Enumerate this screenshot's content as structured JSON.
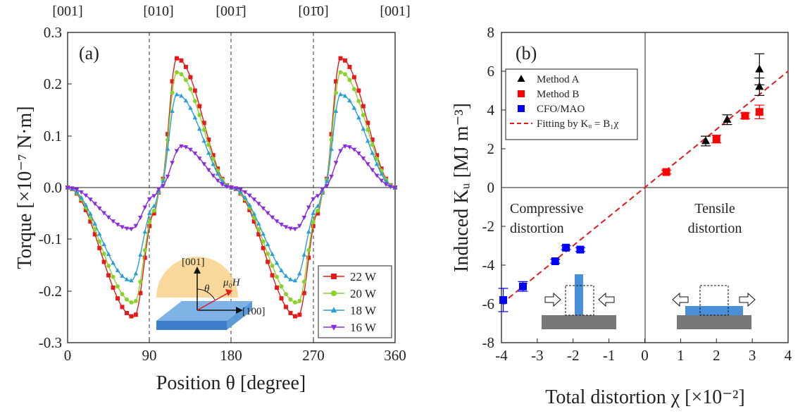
{
  "chart_data": [
    {
      "panel_label": "(a)",
      "type": "line",
      "xlabel": "Position θ [degree]",
      "ylabel": "Torque [×10⁻⁷ N·m]",
      "xlim": [
        0,
        360
      ],
      "ylim": [
        -0.3,
        0.3
      ],
      "xticks": [
        "0",
        "90",
        "180",
        "270",
        "360"
      ],
      "yticks": [
        "-0.3",
        "-0.2",
        "-0.1",
        "0.0",
        "0.1",
        "0.2",
        "0.3"
      ],
      "top_direction_labels": [
        "[001]",
        "[010]",
        "[001̄]",
        "[01̄0]",
        "[001]"
      ],
      "dashed_vlines": [
        90,
        180,
        270
      ],
      "legend_position": "bottom-right",
      "inset_labels": {
        "top_axis": "[001]",
        "right_axis": "[100]",
        "angle": "θ",
        "field": "μ₀H"
      },
      "series": [
        {
          "name": "22 W",
          "color": "#e41a1c",
          "marker": "square",
          "amplitude": 0.25,
          "x_peak": [
            73,
            120,
            253,
            300
          ]
        },
        {
          "name": "20 W",
          "color": "#8ad22a",
          "marker": "circle",
          "amplitude": 0.223,
          "x_peak": [
            73,
            120,
            253,
            300
          ]
        },
        {
          "name": "18 W",
          "color": "#2a9fd6",
          "marker": "triangle-up",
          "amplitude": 0.18,
          "x_peak": [
            70,
            120,
            250,
            300
          ]
        },
        {
          "name": "16 W",
          "color": "#8a2be2",
          "marker": "triangle-down",
          "amplitude": 0.08,
          "x_peak": [
            70,
            125,
            250,
            305
          ]
        }
      ]
    },
    {
      "panel_label": "(b)",
      "type": "scatter",
      "xlabel": "Total distortion χ [×10⁻²]",
      "ylabel": "Induced Kᵤ [MJ m⁻³]",
      "xlim": [
        -4,
        4
      ],
      "ylim": [
        -8,
        8
      ],
      "xticks": [
        "-4",
        "-3",
        "-2",
        "-1",
        "0",
        "1",
        "2",
        "3",
        "4"
      ],
      "yticks": [
        "-8",
        "-6",
        "-4",
        "-2",
        "0",
        "2",
        "4",
        "6",
        "8"
      ],
      "quadrant_labels": {
        "compressive": [
          "Compressive",
          "distortion"
        ],
        "tensile": [
          "Tensile",
          "distortion"
        ]
      },
      "legend_position": "top-left",
      "series": [
        {
          "name": "Method A",
          "color": "#000000",
          "marker": "triangle-up",
          "x": [
            1.7,
            2.3,
            3.2,
            3.2
          ],
          "y": [
            2.4,
            3.5,
            6.1,
            5.2
          ],
          "err": [
            0.25,
            0.25,
            0.8,
            0.45
          ]
        },
        {
          "name": "Method B",
          "color": "#ff0000",
          "marker": "square",
          "x": [
            0.6,
            2.0,
            2.8,
            3.2
          ],
          "y": [
            0.8,
            2.5,
            3.7,
            3.9
          ],
          "err": [
            0.1,
            0.2,
            0.15,
            0.35
          ]
        },
        {
          "name": "CFO/MAO",
          "color": "#0000ff",
          "marker": "square",
          "x": [
            -3.95,
            -3.4,
            -2.5,
            -2.2,
            -1.8
          ],
          "y": [
            -5.8,
            -5.1,
            -3.8,
            -3.1,
            -3.2
          ],
          "err": [
            0.6,
            0.25,
            0.1,
            0.1,
            0.1
          ]
        }
      ],
      "fit": {
        "name": "Fitting by Kᵤ = B₁χ",
        "color": "#e41a1c",
        "slope": 1.5,
        "x_range": [
          -4,
          4
        ]
      }
    }
  ]
}
